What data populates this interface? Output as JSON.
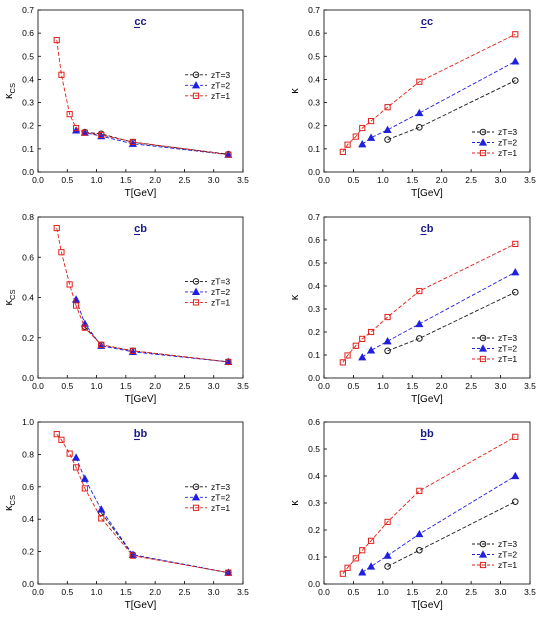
{
  "colors": {
    "zT3": "#1a1a1a",
    "zT2": "#1f1fe0",
    "zT1": "#e0201a",
    "title": "#1a1a8c",
    "axis": "#000000"
  },
  "markers": {
    "zT3": "circle",
    "zT2": "triangle-up",
    "zT1": "square"
  },
  "chart_data": [
    {
      "type": "line",
      "title": "cc",
      "xlabel": "T[GeV]",
      "ylabel": "κCS",
      "ylabel_main": "κ",
      "ylabel_sub": "CS",
      "xlim": [
        0.0,
        3.5
      ],
      "ylim": [
        0.0,
        0.7
      ],
      "xticks": [
        "0.0",
        "0.5",
        "1.0",
        "1.5",
        "2.0",
        "2.5",
        "3.0",
        "3.5"
      ],
      "yticks": [
        "0.0",
        "0.1",
        "0.2",
        "0.3",
        "0.4",
        "0.5",
        "0.6",
        "0.7"
      ],
      "legend": "middle-right",
      "grid": false,
      "series": [
        {
          "name": "zT=3",
          "color": "zT3",
          "marker": "circle",
          "x": [
            0.8,
            1.08,
            1.62,
            3.25
          ],
          "y": [
            0.172,
            0.165,
            0.128,
            0.077
          ]
        },
        {
          "name": "zT=2",
          "color": "zT2",
          "marker": "triangle-up",
          "x": [
            0.65,
            0.8,
            1.08,
            1.62,
            3.25
          ],
          "y": [
            0.18,
            0.17,
            0.155,
            0.122,
            0.075
          ]
        },
        {
          "name": "zT=1",
          "color": "zT1",
          "marker": "square",
          "x": [
            0.32,
            0.4,
            0.54,
            0.65,
            0.8,
            1.08,
            1.62,
            3.25
          ],
          "y": [
            0.57,
            0.42,
            0.25,
            0.19,
            0.17,
            0.16,
            0.13,
            0.075
          ]
        }
      ]
    },
    {
      "type": "line",
      "title": "cc",
      "xlabel": "T[GeV]",
      "ylabel": "κ",
      "ylabel_main": "κ",
      "ylabel_sub": "",
      "xlim": [
        0.0,
        3.5
      ],
      "ylim": [
        0.0,
        0.7
      ],
      "xticks": [
        "0.0",
        "0.5",
        "1.0",
        "1.5",
        "2.0",
        "2.5",
        "3.0",
        "3.5"
      ],
      "yticks": [
        "0.0",
        "0.1",
        "0.2",
        "0.3",
        "0.4",
        "0.5",
        "0.6",
        "0.7"
      ],
      "legend": "bottom-right",
      "grid": false,
      "series": [
        {
          "name": "zT=3",
          "color": "zT3",
          "marker": "circle",
          "x": [
            1.08,
            1.62,
            3.25
          ],
          "y": [
            0.14,
            0.193,
            0.395
          ]
        },
        {
          "name": "zT=2",
          "color": "zT2",
          "marker": "triangle-up",
          "x": [
            0.65,
            0.8,
            1.08,
            1.62,
            3.25
          ],
          "y": [
            0.12,
            0.148,
            0.182,
            0.255,
            0.478
          ]
        },
        {
          "name": "zT=1",
          "color": "zT1",
          "marker": "square",
          "x": [
            0.32,
            0.4,
            0.54,
            0.65,
            0.8,
            1.08,
            1.62,
            3.25
          ],
          "y": [
            0.087,
            0.118,
            0.153,
            0.19,
            0.22,
            0.28,
            0.39,
            0.595
          ]
        }
      ]
    },
    {
      "type": "line",
      "title": "cb",
      "xlabel": "T[GeV]",
      "ylabel": "κCS",
      "ylabel_main": "κ",
      "ylabel_sub": "CS",
      "xlim": [
        0.0,
        3.5
      ],
      "ylim": [
        0.0,
        0.8
      ],
      "xticks": [
        "0.0",
        "0.5",
        "1.0",
        "1.5",
        "2.0",
        "2.5",
        "3.0",
        "3.5"
      ],
      "yticks": [
        "0.0",
        "0.2",
        "0.4",
        "0.6",
        "0.8"
      ],
      "legend": "middle-right",
      "grid": false,
      "series": [
        {
          "name": "zT=3",
          "color": "zT3",
          "marker": "circle",
          "x": [
            0.8,
            1.08,
            1.62,
            3.25
          ],
          "y": [
            0.255,
            0.165,
            0.135,
            0.08
          ]
        },
        {
          "name": "zT=2",
          "color": "zT2",
          "marker": "triangle-up",
          "x": [
            0.65,
            0.8,
            1.08,
            1.62,
            3.25
          ],
          "y": [
            0.39,
            0.27,
            0.16,
            0.13,
            0.08
          ]
        },
        {
          "name": "zT=1",
          "color": "zT1",
          "marker": "square",
          "x": [
            0.32,
            0.4,
            0.54,
            0.65,
            0.8,
            1.08,
            1.62,
            3.25
          ],
          "y": [
            0.745,
            0.625,
            0.465,
            0.36,
            0.25,
            0.165,
            0.135,
            0.08
          ]
        }
      ]
    },
    {
      "type": "line",
      "title": "cb",
      "xlabel": "T[GeV]",
      "ylabel": "κ",
      "ylabel_main": "κ",
      "ylabel_sub": "",
      "xlim": [
        0.0,
        3.5
      ],
      "ylim": [
        0.0,
        0.7
      ],
      "xticks": [
        "0.0",
        "0.5",
        "1.0",
        "1.5",
        "2.0",
        "2.5",
        "3.0",
        "3.5"
      ],
      "yticks": [
        "0.0",
        "0.1",
        "0.2",
        "0.3",
        "0.4",
        "0.5",
        "0.6",
        "0.7"
      ],
      "legend": "bottom-right",
      "grid": false,
      "series": [
        {
          "name": "zT=3",
          "color": "zT3",
          "marker": "circle",
          "x": [
            1.08,
            1.62,
            3.25
          ],
          "y": [
            0.118,
            0.172,
            0.373
          ]
        },
        {
          "name": "zT=2",
          "color": "zT2",
          "marker": "triangle-up",
          "x": [
            0.65,
            0.8,
            1.08,
            1.62,
            3.25
          ],
          "y": [
            0.09,
            0.12,
            0.16,
            0.235,
            0.46
          ]
        },
        {
          "name": "zT=1",
          "color": "zT1",
          "marker": "square",
          "x": [
            0.32,
            0.4,
            0.54,
            0.65,
            0.8,
            1.08,
            1.62,
            3.25
          ],
          "y": [
            0.068,
            0.098,
            0.14,
            0.17,
            0.2,
            0.265,
            0.378,
            0.583
          ]
        }
      ]
    },
    {
      "type": "line",
      "title": "bb",
      "xlabel": "T[GeV]",
      "ylabel": "κCS",
      "ylabel_main": "κ",
      "ylabel_sub": "CS",
      "xlim": [
        0.0,
        3.5
      ],
      "ylim": [
        0.0,
        1.0
      ],
      "xticks": [
        "0.0",
        "0.5",
        "1.0",
        "1.5",
        "2.0",
        "2.5",
        "3.0",
        "3.5"
      ],
      "yticks": [
        "0.0",
        "0.2",
        "0.4",
        "0.6",
        "0.8",
        "1.0"
      ],
      "legend": "middle-right",
      "grid": false,
      "series": [
        {
          "name": "zT=3",
          "color": "zT3",
          "marker": "circle",
          "x": [
            1.08,
            1.62,
            3.25
          ],
          "y": [
            0.44,
            0.18,
            0.07
          ]
        },
        {
          "name": "zT=2",
          "color": "zT2",
          "marker": "triangle-up",
          "x": [
            0.65,
            0.8,
            1.08,
            1.62,
            3.25
          ],
          "y": [
            0.78,
            0.65,
            0.46,
            0.18,
            0.07
          ]
        },
        {
          "name": "zT=1",
          "color": "zT1",
          "marker": "square",
          "x": [
            0.32,
            0.4,
            0.54,
            0.65,
            0.8,
            1.08,
            1.62,
            3.25
          ],
          "y": [
            0.925,
            0.89,
            0.805,
            0.72,
            0.59,
            0.405,
            0.175,
            0.07
          ]
        }
      ]
    },
    {
      "type": "line",
      "title": "bb",
      "xlabel": "T[GeV]",
      "ylabel": "κ",
      "ylabel_main": "κ",
      "ylabel_sub": "",
      "xlim": [
        0.0,
        3.5
      ],
      "ylim": [
        0.0,
        0.6
      ],
      "xticks": [
        "0.0",
        "0.5",
        "1.0",
        "1.5",
        "2.0",
        "2.5",
        "3.0",
        "3.5"
      ],
      "yticks": [
        "0.0",
        "0.1",
        "0.2",
        "0.3",
        "0.4",
        "0.5",
        "0.6"
      ],
      "legend": "bottom-right",
      "grid": false,
      "series": [
        {
          "name": "zT=3",
          "color": "zT3",
          "marker": "circle",
          "x": [
            1.08,
            1.62,
            3.25
          ],
          "y": [
            0.065,
            0.125,
            0.305
          ]
        },
        {
          "name": "zT=2",
          "color": "zT2",
          "marker": "triangle-up",
          "x": [
            0.65,
            0.8,
            1.08,
            1.62,
            3.25
          ],
          "y": [
            0.043,
            0.065,
            0.105,
            0.185,
            0.4
          ]
        },
        {
          "name": "zT=1",
          "color": "zT1",
          "marker": "square",
          "x": [
            0.32,
            0.4,
            0.54,
            0.65,
            0.8,
            1.08,
            1.62,
            3.25
          ],
          "y": [
            0.038,
            0.06,
            0.095,
            0.125,
            0.16,
            0.23,
            0.345,
            0.545
          ]
        }
      ]
    }
  ]
}
